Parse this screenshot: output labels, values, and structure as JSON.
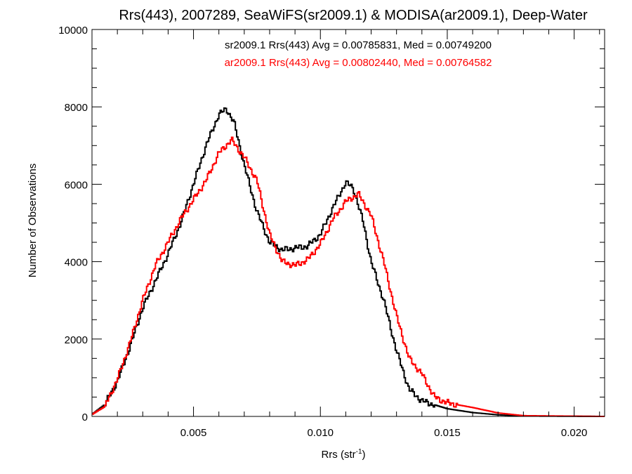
{
  "chart_data": {
    "type": "line",
    "title": "Rrs(443), 2007289, SeaWiFS(sr2009.1) & MODISA(ar2009.1), Deep-Water",
    "xlabel_main": "Rrs (str",
    "xlabel_sup": "-1",
    "xlabel_close": ")",
    "ylabel": "Number of Observations",
    "xlim": [
      0.001,
      0.0212
    ],
    "ylim": [
      0,
      10000
    ],
    "x_ticks": [
      0.005,
      0.01,
      0.015,
      0.02
    ],
    "x_tick_labels": [
      "0.005",
      "0.010",
      "0.015",
      "0.020"
    ],
    "y_ticks": [
      0,
      2000,
      4000,
      6000,
      8000,
      10000
    ],
    "y_tick_labels": [
      "0",
      "2000",
      "4000",
      "6000",
      "8000",
      "10000"
    ],
    "legend_placement": "top-center",
    "series": [
      {
        "color": "#000000",
        "annotation": "sr2009.1 Rrs(443) Avg = 0.00785831, Med = 0.00749200",
        "points": [
          [
            0.001,
            50
          ],
          [
            0.0015,
            300
          ],
          [
            0.002,
            900
          ],
          [
            0.0025,
            1800
          ],
          [
            0.003,
            2800
          ],
          [
            0.0035,
            3500
          ],
          [
            0.004,
            4200
          ],
          [
            0.0045,
            5000
          ],
          [
            0.005,
            6000
          ],
          [
            0.0055,
            7000
          ],
          [
            0.006,
            7800
          ],
          [
            0.0063,
            7950
          ],
          [
            0.0066,
            7600
          ],
          [
            0.007,
            6500
          ],
          [
            0.0075,
            5300
          ],
          [
            0.008,
            4500
          ],
          [
            0.0085,
            4300
          ],
          [
            0.009,
            4350
          ],
          [
            0.0095,
            4400
          ],
          [
            0.01,
            4700
          ],
          [
            0.0105,
            5400
          ],
          [
            0.011,
            6050
          ],
          [
            0.0113,
            5900
          ],
          [
            0.0117,
            5000
          ],
          [
            0.012,
            4000
          ],
          [
            0.0125,
            3000
          ],
          [
            0.013,
            1700
          ],
          [
            0.0135,
            700
          ],
          [
            0.014,
            400
          ],
          [
            0.015,
            200
          ],
          [
            0.016,
            100
          ],
          [
            0.017,
            40
          ],
          [
            0.018,
            10
          ],
          [
            0.0212,
            0
          ]
        ]
      },
      {
        "color": "#ff0000",
        "annotation": "ar2009.1 Rrs(443) Avg = 0.00802440, Med = 0.00764582",
        "points": [
          [
            0.001,
            50
          ],
          [
            0.0015,
            250
          ],
          [
            0.002,
            950
          ],
          [
            0.0025,
            1900
          ],
          [
            0.003,
            3000
          ],
          [
            0.0035,
            3900
          ],
          [
            0.004,
            4500
          ],
          [
            0.0045,
            5100
          ],
          [
            0.005,
            5600
          ],
          [
            0.0055,
            6100
          ],
          [
            0.006,
            6800
          ],
          [
            0.0065,
            7150
          ],
          [
            0.007,
            6700
          ],
          [
            0.0075,
            6100
          ],
          [
            0.008,
            4700
          ],
          [
            0.0085,
            4000
          ],
          [
            0.009,
            3900
          ],
          [
            0.0095,
            4050
          ],
          [
            0.01,
            4450
          ],
          [
            0.0105,
            5100
          ],
          [
            0.011,
            5550
          ],
          [
            0.0115,
            5750
          ],
          [
            0.012,
            5200
          ],
          [
            0.0125,
            4000
          ],
          [
            0.013,
            2600
          ],
          [
            0.0135,
            1500
          ],
          [
            0.014,
            1100
          ],
          [
            0.0145,
            500
          ],
          [
            0.015,
            350
          ],
          [
            0.016,
            230
          ],
          [
            0.017,
            90
          ],
          [
            0.018,
            20
          ],
          [
            0.0212,
            0
          ]
        ]
      }
    ]
  }
}
